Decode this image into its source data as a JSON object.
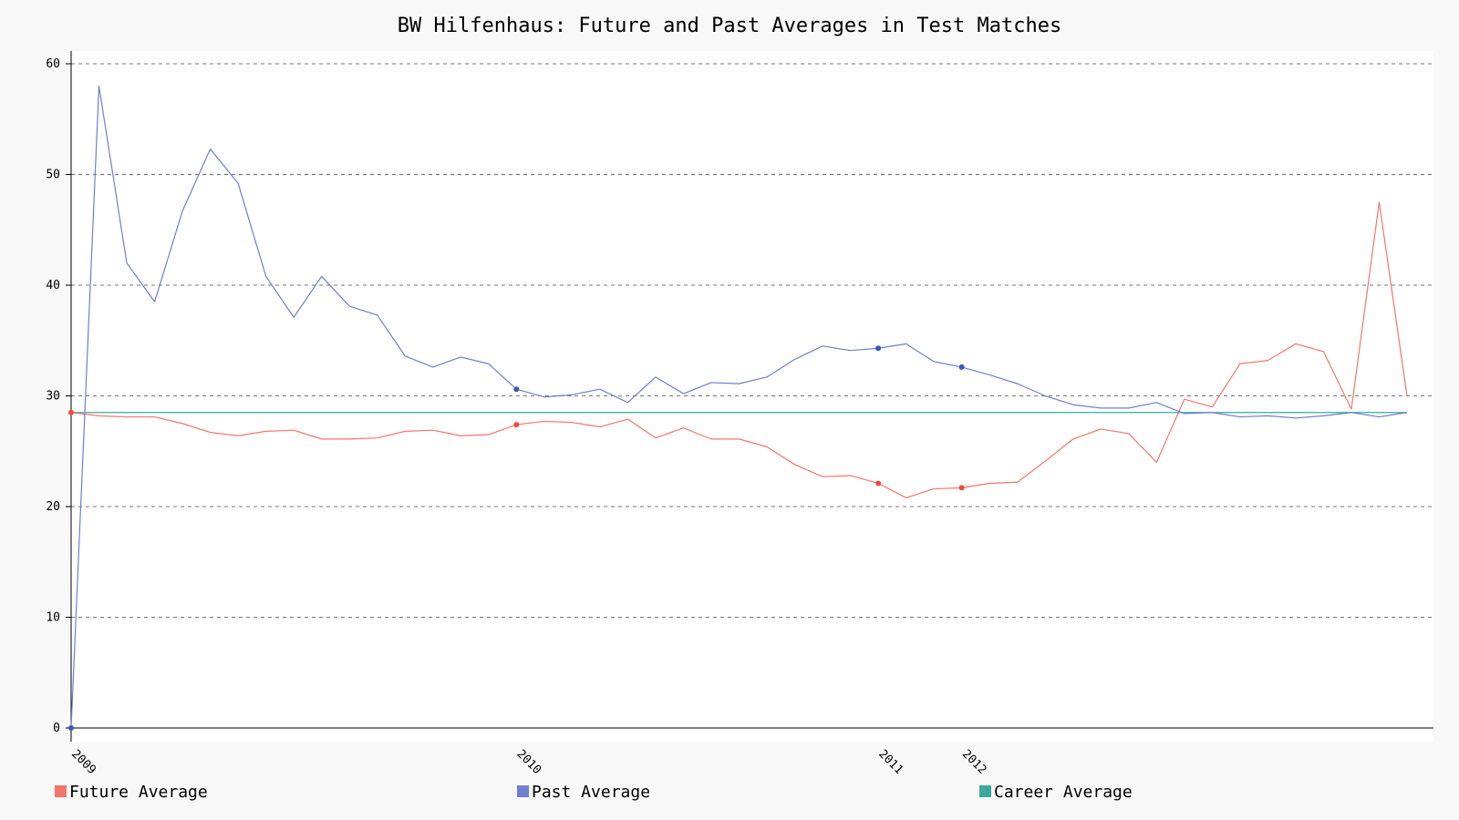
{
  "chart_data": {
    "type": "line",
    "title": "BW Hilfenhaus: Future and Past Averages in Test Matches",
    "xlabel": "",
    "ylabel": "",
    "ylim": [
      0,
      60
    ],
    "y_ticks": [
      0,
      10,
      20,
      30,
      40,
      50,
      60
    ],
    "grid": true,
    "legend_position": "bottom",
    "x_year_labels": [
      {
        "label": "2009",
        "index": 0
      },
      {
        "label": "2010",
        "index": 16
      },
      {
        "label": "2011",
        "index": 29
      },
      {
        "label": "2012",
        "index": 32
      }
    ],
    "series": [
      {
        "name": "Future Average",
        "color": "#f4766a",
        "marker_color": "#f24a3a",
        "marker_indices": [
          0,
          16,
          29,
          32
        ],
        "values": [
          28.5,
          28.2,
          28.1,
          28.1,
          27.5,
          26.7,
          26.4,
          26.8,
          26.9,
          26.1,
          26.1,
          26.2,
          26.8,
          26.9,
          26.4,
          26.5,
          27.4,
          27.7,
          27.6,
          27.2,
          27.9,
          26.2,
          27.1,
          26.1,
          26.1,
          25.4,
          23.8,
          22.7,
          22.8,
          22.1,
          20.8,
          21.6,
          21.7,
          22.1,
          22.2,
          24.1,
          26.1,
          27.0,
          26.6,
          24.0,
          29.7,
          29.0,
          32.9,
          33.2,
          34.7,
          34.0,
          28.8,
          47.5,
          30.0
        ]
      },
      {
        "name": "Past Average",
        "color": "#6f7fcf",
        "marker_color": "#3c55b8",
        "marker_indices": [
          0,
          16,
          29,
          32
        ],
        "values": [
          0,
          58.0,
          42.0,
          38.5,
          46.7,
          52.3,
          49.2,
          40.8,
          37.1,
          40.8,
          38.1,
          37.3,
          33.6,
          32.6,
          33.5,
          32.9,
          30.6,
          29.9,
          30.1,
          30.6,
          29.4,
          31.7,
          30.2,
          31.2,
          31.1,
          31.7,
          33.3,
          34.5,
          34.1,
          34.3,
          34.7,
          33.1,
          32.6,
          31.9,
          31.1,
          30.0,
          29.2,
          28.9,
          28.9,
          29.4,
          28.4,
          28.5,
          28.1,
          28.2,
          28.0,
          28.2,
          28.5,
          28.1,
          28.5
        ]
      },
      {
        "name": "Career Average",
        "color": "#3aaa9c",
        "marker_color": "#3aaa9c",
        "marker_indices": [],
        "values": [
          28.5,
          28.5,
          28.5,
          28.5,
          28.5,
          28.5,
          28.5,
          28.5,
          28.5,
          28.5,
          28.5,
          28.5,
          28.5,
          28.5,
          28.5,
          28.5,
          28.5,
          28.5,
          28.5,
          28.5,
          28.5,
          28.5,
          28.5,
          28.5,
          28.5,
          28.5,
          28.5,
          28.5,
          28.5,
          28.5,
          28.5,
          28.5,
          28.5,
          28.5,
          28.5,
          28.5,
          28.5,
          28.5,
          28.5,
          28.5,
          28.5,
          28.5,
          28.5,
          28.5,
          28.5,
          28.5,
          28.5,
          28.5,
          28.5
        ]
      }
    ]
  }
}
